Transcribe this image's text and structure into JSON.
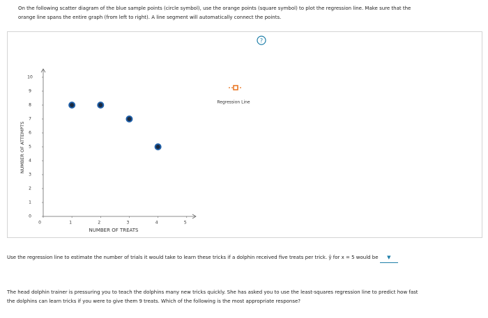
{
  "instructions": "On the following scatter diagram of the blue sample points (circle symbol), use the orange points (square symbol) to plot the regression line. Make sure that the orange line spans the entire graph (from left to right). A line segment will automatically connect the points.",
  "help_icon": "?",
  "chart_data": {
    "type": "scatter",
    "x_label": "NUMBER OF TREATS",
    "y_label": "NUMBER OF ATTEMPTS",
    "x": [
      1,
      2,
      3,
      4
    ],
    "values": [
      8,
      8,
      7,
      5
    ],
    "color": "#1f5fa8",
    "xlim": [
      0,
      5.2
    ],
    "ylim": [
      0,
      10.4
    ],
    "xticks": [
      0,
      1,
      2,
      3,
      4,
      5
    ],
    "yticks": [
      0,
      1,
      2,
      3,
      4,
      5,
      6,
      7,
      8,
      9,
      10
    ],
    "legend": {
      "label": "Regression Line",
      "color": "#e8711a"
    }
  },
  "question_1": "Use the regression line to estimate the number of trials it would take to learn these tricks if a dolphin received five treats per trick. ŷ for x = 5 would be",
  "question_2": "The head dolphin trainer is pressuring you to teach the dolphins many new tricks quickly. She has asked you to use the least-squares regression line to predict how fast the dolphins can learn tricks if you were to give them 9 treats. Which of the following is the most appropriate response?"
}
